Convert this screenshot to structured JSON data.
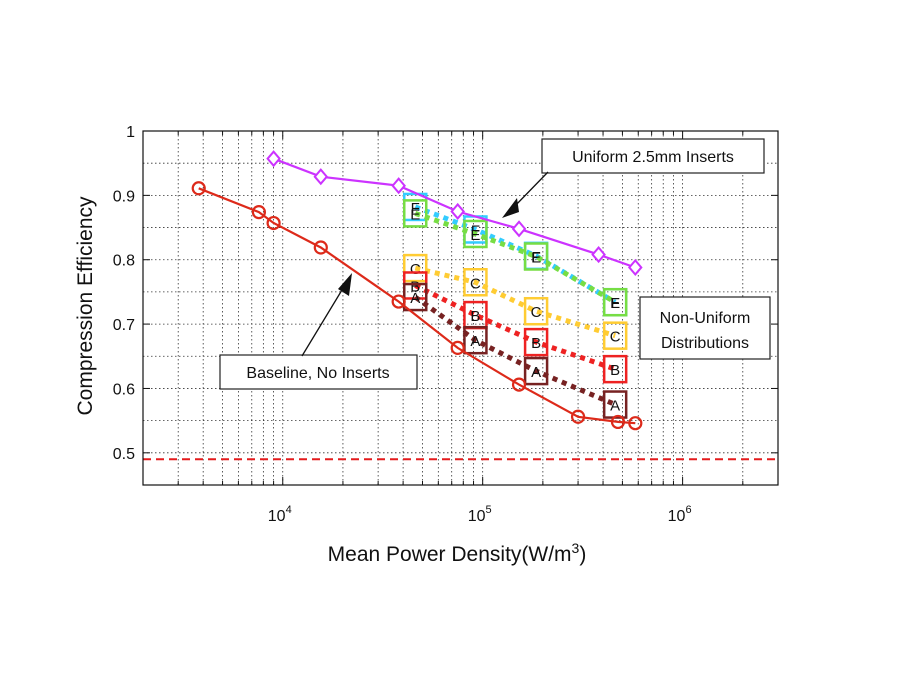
{
  "chart_data": {
    "type": "line",
    "xlabel": "Mean Power Density(W/m",
    "xlabel_sup": "3",
    "xlabel_end": ")",
    "ylabel": "Compression Efficiency",
    "xscale": "log",
    "xlim": [
      2000,
      3000000
    ],
    "ylim": [
      0.45,
      1.0
    ],
    "grid": true,
    "xticks": [
      {
        "value": 10000,
        "base": "10",
        "exp": "4"
      },
      {
        "value": 100000,
        "base": "10",
        "exp": "5"
      },
      {
        "value": 1000000,
        "base": "10",
        "exp": "6"
      }
    ],
    "yticks": [
      {
        "value": 0.5,
        "label": "0.5"
      },
      {
        "value": 0.6,
        "label": "0.6"
      },
      {
        "value": 0.7,
        "label": "0.7"
      },
      {
        "value": 0.8,
        "label": "0.8"
      },
      {
        "value": 0.9,
        "label": "0.9"
      },
      {
        "value": 1.0,
        "label": "1"
      }
    ],
    "reference_line": {
      "y": 0.49,
      "color": "#e41a1c",
      "style": "dashed"
    },
    "series": [
      {
        "key": "uniform",
        "color": "#cc33ff",
        "marker": "diamond",
        "line": "solid",
        "x": [
          9000,
          15500,
          38000,
          75000,
          152000,
          380000,
          580000
        ],
        "y": [
          0.957,
          0.929,
          0.915,
          0.875,
          0.848,
          0.808,
          0.788
        ]
      },
      {
        "key": "baseline",
        "color": "#dd2a1a",
        "marker": "circle",
        "line": "solid",
        "x": [
          3800,
          7600,
          9000,
          15500,
          38000,
          75000,
          152000,
          300000,
          475000,
          580000
        ],
        "y": [
          0.911,
          0.874,
          0.857,
          0.819,
          0.735,
          0.663,
          0.606,
          0.556,
          0.548,
          0.546
        ]
      },
      {
        "key": "F",
        "color": "#33ccff",
        "marker_label": "F",
        "line": "dotted",
        "x": [
          46000,
          92000,
          185000,
          460000
        ],
        "y": [
          0.882,
          0.847,
          0.806,
          0.734
        ]
      },
      {
        "key": "E",
        "color": "#77dd44",
        "marker_label": "E",
        "line": "dotted",
        "x": [
          46000,
          92000,
          185000,
          460000
        ],
        "y": [
          0.872,
          0.84,
          0.805,
          0.734
        ]
      },
      {
        "key": "C",
        "color": "#ffcc33",
        "marker_label": "C",
        "line": "dotted",
        "x": [
          46000,
          92000,
          185000,
          460000
        ],
        "y": [
          0.787,
          0.765,
          0.72,
          0.682
        ]
      },
      {
        "key": "B",
        "color": "#ee2222",
        "marker_label": "B",
        "line": "dotted",
        "x": [
          46000,
          92000,
          185000,
          460000
        ],
        "y": [
          0.76,
          0.714,
          0.672,
          0.63
        ]
      },
      {
        "key": "A",
        "color": "#772222",
        "marker_label": "A",
        "line": "dotted",
        "x": [
          46000,
          92000,
          185000,
          460000
        ],
        "y": [
          0.742,
          0.675,
          0.627,
          0.575
        ]
      }
    ],
    "annotations": [
      {
        "key": "uniform_label",
        "text": "Uniform 2.5mm Inserts"
      },
      {
        "key": "nonuniform_label_1",
        "text": "Non-Uniform"
      },
      {
        "key": "nonuniform_label_2",
        "text": "Distributions"
      },
      {
        "key": "baseline_label",
        "text": "Baseline, No Inserts"
      }
    ]
  }
}
